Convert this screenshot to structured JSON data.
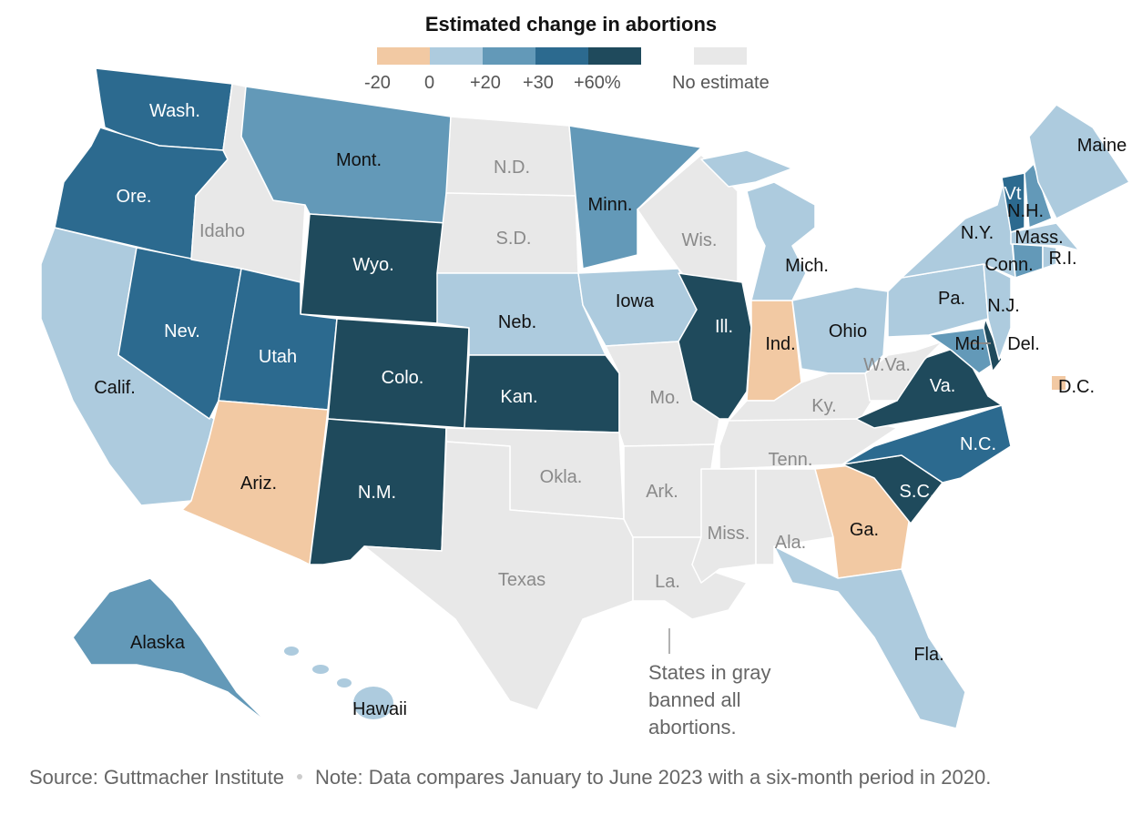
{
  "title": "Estimated change in abortions",
  "legend": {
    "bins": [
      {
        "id": "neg",
        "color": "#f2c9a3"
      },
      {
        "id": "b0",
        "color": "#adcbde"
      },
      {
        "id": "b20",
        "color": "#6399b8"
      },
      {
        "id": "b30",
        "color": "#2c6a8f"
      },
      {
        "id": "b60",
        "color": "#1f4a5c"
      }
    ],
    "ticks": [
      "-20",
      "0",
      "+20",
      "+30",
      "+60%"
    ],
    "no_estimate": {
      "label": "No estimate",
      "color": "#e8e8e8"
    }
  },
  "states": [
    {
      "id": "WA",
      "label": "Wash.",
      "bin": "b30"
    },
    {
      "id": "OR",
      "label": "Ore.",
      "bin": "b30"
    },
    {
      "id": "CA",
      "label": "Calif.",
      "bin": "b0"
    },
    {
      "id": "NV",
      "label": "Nev.",
      "bin": "b30"
    },
    {
      "id": "ID",
      "label": "Idaho",
      "bin": "none"
    },
    {
      "id": "MT",
      "label": "Mont.",
      "bin": "b20"
    },
    {
      "id": "WY",
      "label": "Wyo.",
      "bin": "b60"
    },
    {
      "id": "UT",
      "label": "Utah",
      "bin": "b30"
    },
    {
      "id": "AZ",
      "label": "Ariz.",
      "bin": "neg"
    },
    {
      "id": "CO",
      "label": "Colo.",
      "bin": "b60"
    },
    {
      "id": "NM",
      "label": "N.M.",
      "bin": "b60"
    },
    {
      "id": "ND",
      "label": "N.D.",
      "bin": "none"
    },
    {
      "id": "SD",
      "label": "S.D.",
      "bin": "none"
    },
    {
      "id": "NE",
      "label": "Neb.",
      "bin": "b0"
    },
    {
      "id": "KS",
      "label": "Kan.",
      "bin": "b60"
    },
    {
      "id": "OK",
      "label": "Okla.",
      "bin": "none"
    },
    {
      "id": "TX",
      "label": "Texas",
      "bin": "none"
    },
    {
      "id": "MN",
      "label": "Minn.",
      "bin": "b20"
    },
    {
      "id": "IA",
      "label": "Iowa",
      "bin": "b0"
    },
    {
      "id": "MO",
      "label": "Mo.",
      "bin": "none"
    },
    {
      "id": "AR",
      "label": "Ark.",
      "bin": "none"
    },
    {
      "id": "LA",
      "label": "La.",
      "bin": "none"
    },
    {
      "id": "WI",
      "label": "Wis.",
      "bin": "none"
    },
    {
      "id": "IL",
      "label": "Ill.",
      "bin": "b60"
    },
    {
      "id": "IN",
      "label": "Ind.",
      "bin": "neg"
    },
    {
      "id": "MI",
      "label": "Mich.",
      "bin": "b0"
    },
    {
      "id": "OH",
      "label": "Ohio",
      "bin": "b0"
    },
    {
      "id": "KY",
      "label": "Ky.",
      "bin": "none"
    },
    {
      "id": "TN",
      "label": "Tenn.",
      "bin": "none"
    },
    {
      "id": "MS",
      "label": "Miss.",
      "bin": "none"
    },
    {
      "id": "AL",
      "label": "Ala.",
      "bin": "none"
    },
    {
      "id": "GA",
      "label": "Ga.",
      "bin": "neg"
    },
    {
      "id": "FL",
      "label": "Fla.",
      "bin": "b0"
    },
    {
      "id": "SC",
      "label": "S.C.",
      "bin": "b60"
    },
    {
      "id": "NC",
      "label": "N.C.",
      "bin": "b30"
    },
    {
      "id": "VA",
      "label": "Va.",
      "bin": "b60"
    },
    {
      "id": "WV",
      "label": "W.Va.",
      "bin": "none"
    },
    {
      "id": "MD",
      "label": "Md.",
      "bin": "b20"
    },
    {
      "id": "DE",
      "label": "Del.",
      "bin": "b60"
    },
    {
      "id": "PA",
      "label": "Pa.",
      "bin": "b0"
    },
    {
      "id": "NJ",
      "label": "N.J.",
      "bin": "b0"
    },
    {
      "id": "NY",
      "label": "N.Y.",
      "bin": "b0"
    },
    {
      "id": "VT",
      "label": "Vt",
      "bin": "b30"
    },
    {
      "id": "NH",
      "label": "N.H.",
      "bin": "b20"
    },
    {
      "id": "ME",
      "label": "Maine",
      "bin": "b0"
    },
    {
      "id": "MA",
      "label": "Mass.",
      "bin": "b0"
    },
    {
      "id": "CT",
      "label": "Conn.",
      "bin": "b20"
    },
    {
      "id": "RI",
      "label": "R.I.",
      "bin": "b0"
    },
    {
      "id": "AK",
      "label": "Alaska",
      "bin": "b20"
    },
    {
      "id": "HI",
      "label": "Hawaii",
      "bin": "b0"
    },
    {
      "id": "DC",
      "label": "D.C.",
      "bin": "neg"
    }
  ],
  "annotation": {
    "line1": "States in gray",
    "line2": "banned all",
    "line3": "abortions."
  },
  "footer": {
    "source": "Source: Guttmacher Institute",
    "note": "Note: Data compares January to June 2023 with a six-month period in 2020."
  }
}
